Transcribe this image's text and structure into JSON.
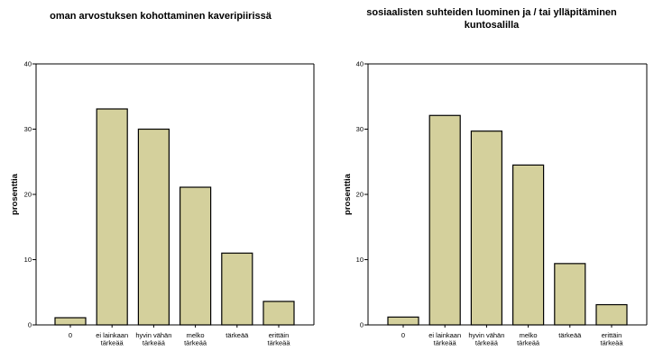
{
  "colors": {
    "bar_fill": "#d4d09c",
    "bar_stroke": "#000000",
    "axis": "#000000",
    "background": "#ffffff"
  },
  "chart_data": [
    {
      "type": "bar",
      "title": "oman arvostuksen kohottaminen kaveripiirissä",
      "title_lines": [
        "oman arvostuksen kohottaminen kaveripiirissä"
      ],
      "ylabel": "prosenttia",
      "xlabel": "",
      "ylim": [
        0,
        40
      ],
      "yticks": [
        0,
        10,
        20,
        30,
        40
      ],
      "grid": false,
      "categories": [
        "0",
        "ei lainkaan tärkeää",
        "hyvin vähän tärkeää",
        "melko tärkeää",
        "tärkeää",
        "erittäin tärkeää"
      ],
      "category_lines": [
        [
          "0"
        ],
        [
          "ei lainkaan",
          "tärkeää"
        ],
        [
          "hyvin vähän",
          "tärkeää"
        ],
        [
          "melko",
          "tärkeää"
        ],
        [
          "tärkeää"
        ],
        [
          "erittäin",
          "tärkeää"
        ]
      ],
      "values": [
        1.1,
        33.1,
        30.0,
        21.1,
        11.0,
        3.6
      ]
    },
    {
      "type": "bar",
      "title": "sosiaalisten suhteiden luominen ja / tai ylläpitäminen kuntosalilla",
      "title_lines": [
        "sosiaalisten suhteiden luominen ja / tai ylläpitäminen",
        "kuntosalilla"
      ],
      "ylabel": "prosenttia",
      "xlabel": "",
      "ylim": [
        0,
        40
      ],
      "yticks": [
        0,
        10,
        20,
        30,
        40
      ],
      "grid": false,
      "categories": [
        "0",
        "ei lainkaan tärkeää",
        "hyvin vähän tärkeää",
        "melko tärkeää",
        "tärkeää",
        "erittäin tärkeää"
      ],
      "category_lines": [
        [
          "0"
        ],
        [
          "ei lainkaan",
          "tärkeää"
        ],
        [
          "hyvin vähän",
          "tärkeää"
        ],
        [
          "melko",
          "tärkeää"
        ],
        [
          "tärkeää"
        ],
        [
          "erittäin",
          "tärkeää"
        ]
      ],
      "values": [
        1.2,
        32.1,
        29.7,
        24.5,
        9.4,
        3.1
      ]
    }
  ]
}
